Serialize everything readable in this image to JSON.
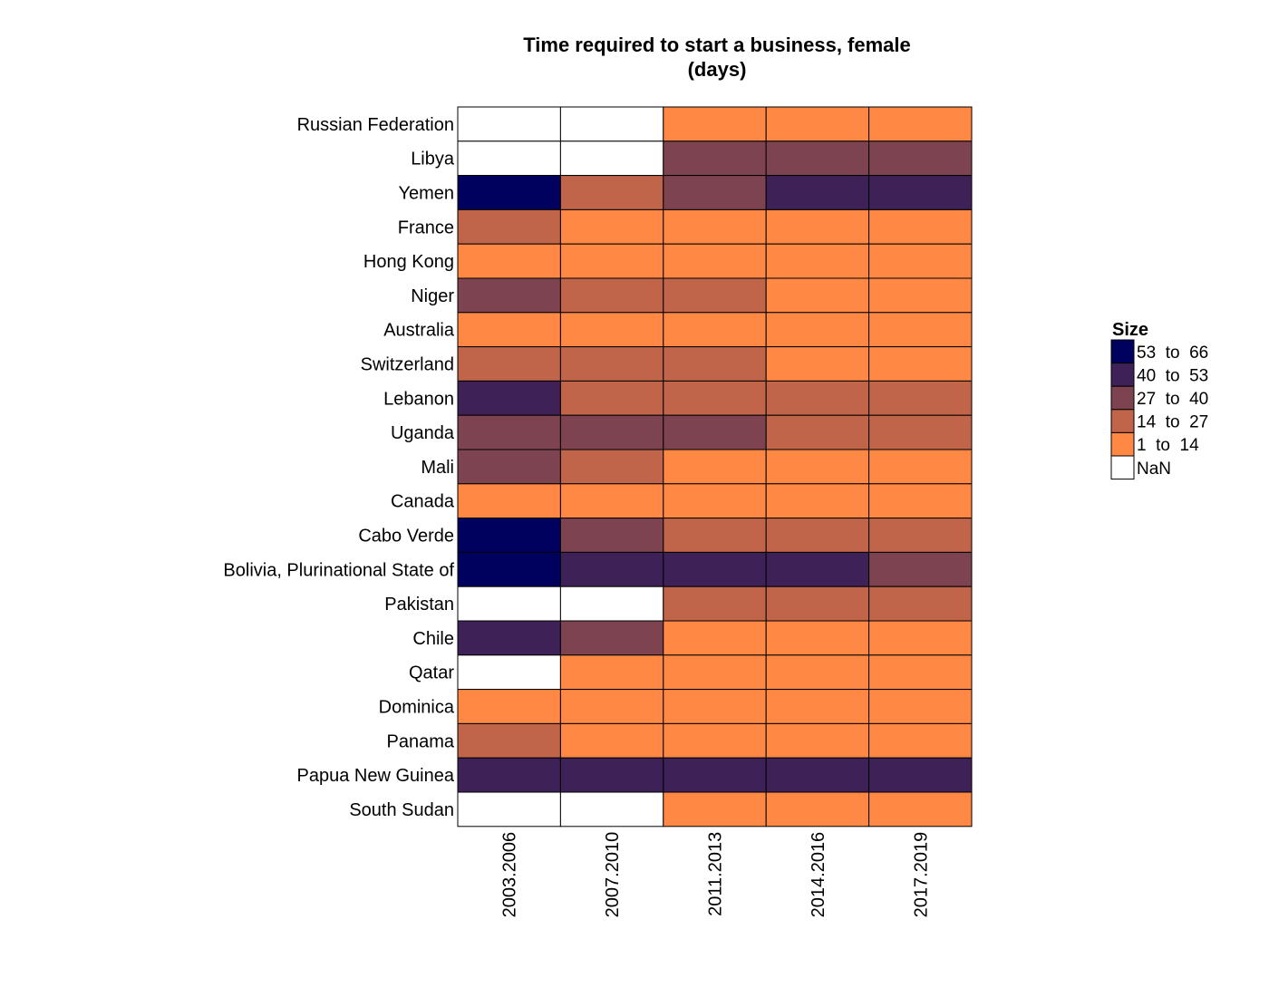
{
  "chart_data": {
    "type": "heatmap",
    "title": [
      "Time required to start a business, female",
      "(days)"
    ],
    "x_categories": [
      "2003.2006",
      "2007.2010",
      "2011.2013",
      "2014.2016",
      "2017.2019"
    ],
    "y_categories": [
      "Russian Federation",
      "Libya",
      "Yemen",
      "France",
      "Hong Kong",
      "Niger",
      "Australia",
      "Switzerland",
      "Lebanon",
      "Uganda",
      "Mali",
      "Canada",
      "Cabo Verde",
      "Bolivia, Plurinational State of",
      "Pakistan",
      "Chile",
      "Qatar",
      "Dominica",
      "Panama",
      "Papua New Guinea",
      "South Sudan"
    ],
    "cell_bins": [
      [
        null,
        null,
        0,
        0,
        0
      ],
      [
        null,
        null,
        2,
        2,
        2
      ],
      [
        4,
        1,
        2,
        3,
        3
      ],
      [
        1,
        0,
        0,
        0,
        0
      ],
      [
        0,
        0,
        0,
        0,
        0
      ],
      [
        2,
        1,
        1,
        0,
        0
      ],
      [
        0,
        0,
        0,
        0,
        0
      ],
      [
        1,
        1,
        1,
        0,
        0
      ],
      [
        3,
        1,
        1,
        1,
        1
      ],
      [
        2,
        2,
        2,
        1,
        1
      ],
      [
        2,
        1,
        0,
        0,
        0
      ],
      [
        0,
        0,
        0,
        0,
        0
      ],
      [
        4,
        2,
        1,
        1,
        1
      ],
      [
        4,
        3,
        3,
        3,
        2
      ],
      [
        null,
        null,
        1,
        1,
        1
      ],
      [
        3,
        2,
        0,
        0,
        0
      ],
      [
        null,
        0,
        0,
        0,
        0
      ],
      [
        0,
        0,
        0,
        0,
        0
      ],
      [
        1,
        0,
        0,
        0,
        0
      ],
      [
        3,
        3,
        3,
        3,
        3
      ],
      [
        null,
        null,
        0,
        0,
        0
      ]
    ],
    "bins": [
      {
        "label": "1  to  14",
        "color": "#ff8944"
      },
      {
        "label": "14  to  27",
        "color": "#c0654a"
      },
      {
        "label": "27  to  40",
        "color": "#7d4350"
      },
      {
        "label": "40  to  53",
        "color": "#3e2157"
      },
      {
        "label": "53  to  66",
        "color": "#00005e"
      }
    ],
    "nan": {
      "label": "NaN",
      "color": "#ffffff"
    },
    "legend": {
      "title": "Size",
      "placement": "right"
    }
  }
}
